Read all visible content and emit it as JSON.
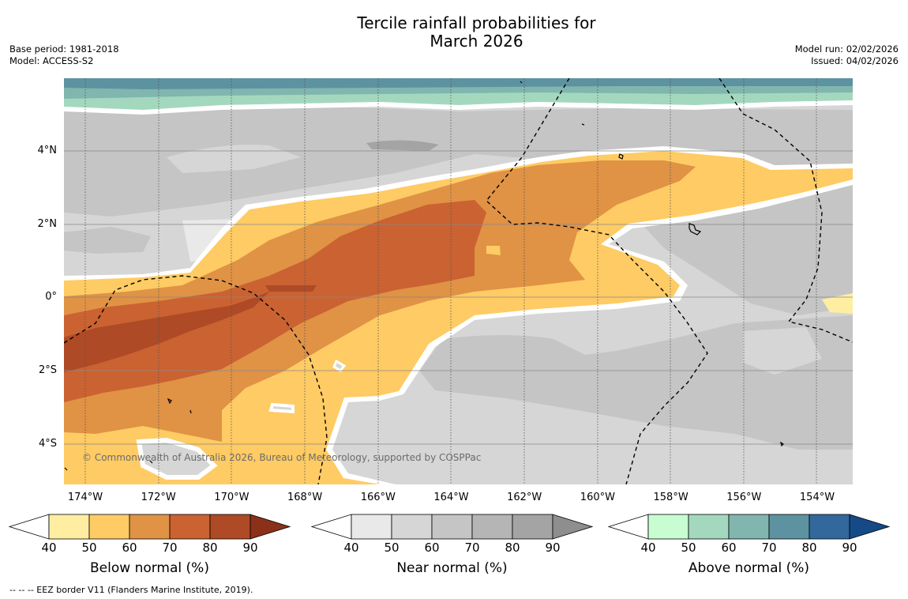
{
  "title": {
    "line1": "Tercile rainfall probabilities for",
    "line2": "March 2026"
  },
  "meta": {
    "base_period": "Base period: 1981-2018",
    "model": "Model: ACCESS-S2",
    "model_run": "Model run: 02/02/2026",
    "issued": "Issued: 04/02/2026"
  },
  "map": {
    "lon_ticks": [
      "174°W",
      "172°W",
      "170°W",
      "168°W",
      "166°W",
      "164°W",
      "162°W",
      "160°W",
      "158°W",
      "156°W",
      "154°W"
    ],
    "lat_ticks": [
      "4°N",
      "2°N",
      "0°",
      "2°S",
      "4°S"
    ],
    "copyright": "© Commonwealth of Australia 2026, Bureau of Meteorology, supported by COSPPac"
  },
  "colorbars": [
    {
      "label": "Below normal (%)",
      "ticks": [
        "40",
        "50",
        "60",
        "70",
        "80",
        "90"
      ],
      "colors": [
        "#ffeea1",
        "#fecb64",
        "#e09245",
        "#ca6231",
        "#ae4a26"
      ],
      "end_color": "#8b3119"
    },
    {
      "label": "Near normal (%)",
      "ticks": [
        "40",
        "50",
        "60",
        "70",
        "80",
        "90"
      ],
      "colors": [
        "#e9e9e9",
        "#d6d6d6",
        "#c5c5c5",
        "#b5b5b5",
        "#a4a4a4"
      ],
      "end_color": "#8e8e8e"
    },
    {
      "label": "Above normal (%)",
      "ticks": [
        "40",
        "50",
        "60",
        "70",
        "80",
        "90"
      ],
      "colors": [
        "#c8fdd2",
        "#a3d8bf",
        "#80b6ae",
        "#5d93a0",
        "#33689d"
      ],
      "end_color": "#154a87"
    }
  ],
  "footnote": "--  --  -- EEZ border V11 (Flanders Marine Institute, 2019)."
}
